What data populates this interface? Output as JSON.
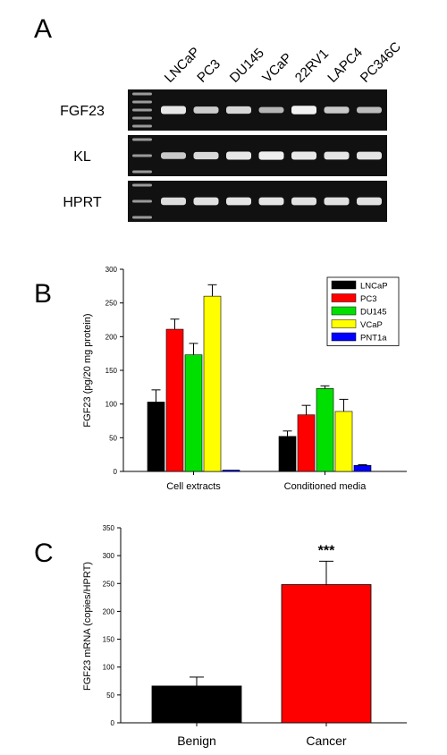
{
  "panel_a": {
    "letter": "A",
    "lanes": [
      "LNCaP",
      "PC3",
      "DU145",
      "VCaP",
      "22RV1",
      "LAPC4",
      "PC346C"
    ],
    "rows": [
      {
        "label": "FGF23",
        "intensity": [
          0.82,
          0.62,
          0.7,
          0.45,
          0.9,
          0.6,
          0.5
        ]
      },
      {
        "label": "KL",
        "intensity": [
          0.6,
          0.72,
          0.82,
          0.88,
          0.82,
          0.8,
          0.8
        ]
      },
      {
        "label": "HPRT",
        "intensity": [
          0.75,
          0.78,
          0.8,
          0.8,
          0.78,
          0.78,
          0.78
        ]
      }
    ]
  },
  "chart_data": [
    {
      "panel": "B",
      "type": "bar",
      "ylabel": "FGF23 (pg/20 mg protein)",
      "ylim": [
        0,
        300
      ],
      "yticks": [
        0,
        50,
        100,
        150,
        200,
        250,
        300
      ],
      "categories": [
        "Cell extracts",
        "Conditioned media"
      ],
      "legend_position": "top-right",
      "series": [
        {
          "name": "LNCaP",
          "color": "#000000",
          "values": [
            103,
            52
          ],
          "errors": [
            18,
            8
          ]
        },
        {
          "name": "PC3",
          "color": "#ff0000",
          "values": [
            211,
            84
          ],
          "errors": [
            15,
            14
          ]
        },
        {
          "name": "DU145",
          "color": "#00e000",
          "values": [
            173,
            123
          ],
          "errors": [
            17,
            4
          ]
        },
        {
          "name": "VCaP",
          "color": "#ffff00",
          "values": [
            260,
            89
          ],
          "errors": [
            17,
            18
          ]
        },
        {
          "name": "PNT1a",
          "color": "#0000ff",
          "values": [
            2,
            9
          ],
          "errors": [
            0,
            1
          ]
        }
      ]
    },
    {
      "panel": "C",
      "type": "bar",
      "ylabel": "FGF23 mRNA (copies/HPRT)",
      "ylim": [
        0,
        350
      ],
      "yticks": [
        0,
        50,
        100,
        150,
        200,
        250,
        300,
        350
      ],
      "categories": [
        "Benign",
        "Cancer"
      ],
      "values": [
        66,
        248
      ],
      "errors": [
        16,
        42
      ],
      "colors": [
        "#000000",
        "#ff0000"
      ],
      "annotation": {
        "text": "***",
        "category": "Cancer"
      }
    }
  ],
  "panel_b": {
    "letter": "B"
  },
  "panel_c": {
    "letter": "C"
  }
}
